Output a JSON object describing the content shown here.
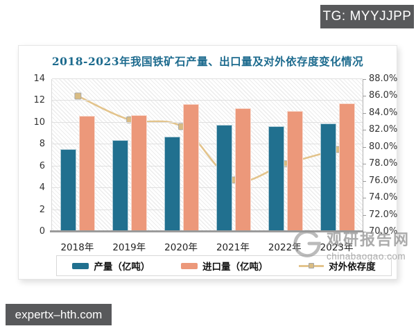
{
  "overlays": {
    "tg_badge": "TG: MYYJJPP",
    "site_badge": "expertx–hth.com"
  },
  "watermark": {
    "name": "观研报告网",
    "domain": "chinabaogao.com"
  },
  "chart_data": {
    "type": "bar",
    "combo_note": "grouped bars on left axis + line on right axis",
    "title": "2018-2023年我国铁矿石产量、出口量及对外依存度变化情况",
    "categories": [
      "2018年",
      "2019年",
      "2020年",
      "2021年",
      "2022年",
      "2023年"
    ],
    "series": [
      {
        "name": "产量（亿吨）",
        "type": "bar",
        "axis": "left",
        "color": "#21708f",
        "values": [
          7.6,
          8.4,
          8.7,
          9.8,
          9.7,
          9.9
        ]
      },
      {
        "name": "进口量（亿吨）",
        "type": "bar",
        "axis": "left",
        "color": "#ec987a",
        "values": [
          10.6,
          10.7,
          11.7,
          11.3,
          11.1,
          11.8
        ]
      },
      {
        "name": "对外依存度",
        "type": "line",
        "axis": "right",
        "color": "#e3c48c",
        "marker_color": "#d9bc83",
        "values": [
          86.0,
          83.2,
          82.4,
          76.1,
          78.0,
          79.7
        ]
      }
    ],
    "left_axis": {
      "min": 0,
      "max": 14,
      "step": 2,
      "ticks": [
        "0",
        "2",
        "4",
        "6",
        "8",
        "10",
        "12",
        "14"
      ]
    },
    "right_axis": {
      "min": 70,
      "max": 88,
      "step": 2,
      "ticks": [
        "70.0%",
        "72.0%",
        "74.0%",
        "76.0%",
        "78.0%",
        "80.0%",
        "82.0%",
        "84.0%",
        "86.0%",
        "88.0%"
      ]
    },
    "legend_position": "bottom",
    "grid": true,
    "plot_background": "diagonal-hatch"
  }
}
